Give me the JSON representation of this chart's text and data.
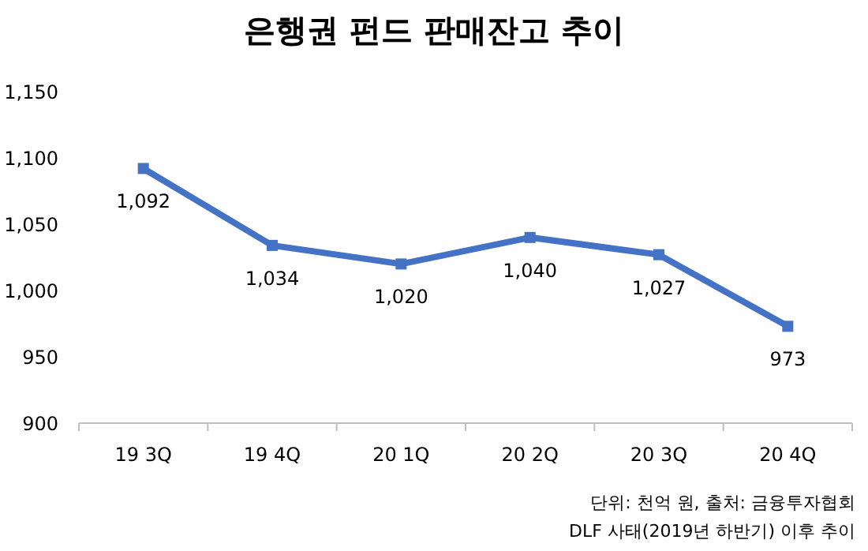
{
  "chart_data": {
    "type": "line",
    "title": "은행권 펀드 판매잔고 추이",
    "categories": [
      "19 3Q",
      "19 4Q",
      "20 1Q",
      "20 2Q",
      "20 3Q",
      "20 4Q"
    ],
    "values": [
      1092,
      1034,
      1020,
      1040,
      1027,
      973
    ],
    "value_labels": [
      "1,092",
      "1,034",
      "1,020",
      "1,040",
      "1,027",
      "973"
    ],
    "color": "#4472c4",
    "marker": "square",
    "grid": false,
    "ylim": [
      900,
      1150
    ],
    "yticks": [
      {
        "value": 900,
        "label": "900"
      },
      {
        "value": 950,
        "label": "950"
      },
      {
        "value": 1000,
        "label": "1,000"
      },
      {
        "value": 1050,
        "label": "1,050"
      },
      {
        "value": 1100,
        "label": "1,100"
      },
      {
        "value": 1150,
        "label": "1,150"
      }
    ],
    "annotations": [
      "단위: 천억 원, 출처: 금융투자협회",
      "DLF 사태(2019년 하반기) 이후 추이"
    ]
  }
}
